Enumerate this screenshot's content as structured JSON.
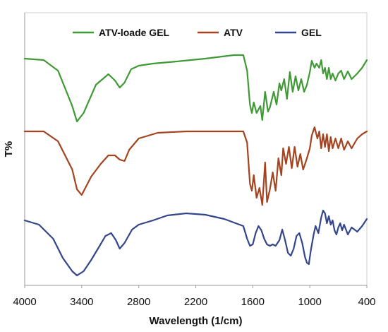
{
  "chart_data": {
    "type": "line",
    "xlabel": "Wavelength (1/cm)",
    "ylabel": "T%",
    "xlim": [
      4000,
      400
    ],
    "x_reversed": true,
    "y_ticks_labeled": false,
    "grid": false,
    "legend_position": "top",
    "x_ticks": [
      4000,
      3400,
      2800,
      2200,
      1600,
      1000,
      400
    ],
    "x_tick_labels": [
      "4000",
      "3400",
      "2800",
      "2200",
      "1600",
      "1000",
      "400"
    ],
    "series": [
      {
        "name": "ATV-loade GEL",
        "color": "#3f9a35",
        "points": [
          [
            4000,
            83
          ],
          [
            3800,
            85
          ],
          [
            3650,
            100
          ],
          [
            3500,
            150
          ],
          [
            3450,
            172
          ],
          [
            3380,
            160
          ],
          [
            3250,
            120
          ],
          [
            3120,
            105
          ],
          [
            3050,
            114
          ],
          [
            3000,
            124
          ],
          [
            2950,
            117
          ],
          [
            2880,
            98
          ],
          [
            2800,
            93
          ],
          [
            2650,
            90
          ],
          [
            2400,
            87
          ],
          [
            2100,
            83
          ],
          [
            1800,
            78
          ],
          [
            1700,
            78
          ],
          [
            1660,
            100
          ],
          [
            1630,
            148
          ],
          [
            1610,
            160
          ],
          [
            1590,
            145
          ],
          [
            1560,
            160
          ],
          [
            1520,
            150
          ],
          [
            1500,
            170
          ],
          [
            1470,
            130
          ],
          [
            1440,
            158
          ],
          [
            1420,
            152
          ],
          [
            1380,
            130
          ],
          [
            1350,
            148
          ],
          [
            1320,
            118
          ],
          [
            1300,
            128
          ],
          [
            1270,
            112
          ],
          [
            1240,
            140
          ],
          [
            1210,
            102
          ],
          [
            1180,
            130
          ],
          [
            1150,
            108
          ],
          [
            1120,
            128
          ],
          [
            1090,
            112
          ],
          [
            1060,
            130
          ],
          [
            1030,
            120
          ],
          [
            1000,
            102
          ],
          [
            980,
            86
          ],
          [
            950,
            96
          ],
          [
            930,
            90
          ],
          [
            900,
            96
          ],
          [
            880,
            85
          ],
          [
            860,
            104
          ],
          [
            840,
            96
          ],
          [
            820,
            112
          ],
          [
            800,
            96
          ],
          [
            780,
            112
          ],
          [
            760,
            104
          ],
          [
            730,
            114
          ],
          [
            700,
            104
          ],
          [
            670,
            100
          ],
          [
            640,
            112
          ],
          [
            600,
            101
          ],
          [
            560,
            112
          ],
          [
            500,
            104
          ],
          [
            450,
            96
          ],
          [
            400,
            85
          ]
        ]
      },
      {
        "name": "ATV",
        "color": "#a4431f",
        "points": [
          [
            4000,
            186
          ],
          [
            3800,
            186
          ],
          [
            3650,
            200
          ],
          [
            3500,
            240
          ],
          [
            3450,
            268
          ],
          [
            3400,
            276
          ],
          [
            3300,
            250
          ],
          [
            3200,
            232
          ],
          [
            3120,
            220
          ],
          [
            3050,
            220
          ],
          [
            3000,
            226
          ],
          [
            2950,
            228
          ],
          [
            2900,
            212
          ],
          [
            2800,
            196
          ],
          [
            2600,
            188
          ],
          [
            2300,
            186
          ],
          [
            2000,
            186
          ],
          [
            1800,
            186
          ],
          [
            1700,
            186
          ],
          [
            1660,
            202
          ],
          [
            1630,
            260
          ],
          [
            1610,
            270
          ],
          [
            1590,
            248
          ],
          [
            1560,
            280
          ],
          [
            1530,
            266
          ],
          [
            1500,
            290
          ],
          [
            1470,
            230
          ],
          [
            1450,
            286
          ],
          [
            1420,
            268
          ],
          [
            1390,
            244
          ],
          [
            1360,
            270
          ],
          [
            1330,
            224
          ],
          [
            1300,
            248
          ],
          [
            1280,
            210
          ],
          [
            1250,
            232
          ],
          [
            1220,
            208
          ],
          [
            1190,
            238
          ],
          [
            1160,
            208
          ],
          [
            1130,
            236
          ],
          [
            1100,
            218
          ],
          [
            1070,
            240
          ],
          [
            1040,
            228
          ],
          [
            1000,
            210
          ],
          [
            980,
            192
          ],
          [
            950,
            180
          ],
          [
            920,
            196
          ],
          [
            900,
            186
          ],
          [
            880,
            210
          ],
          [
            860,
            190
          ],
          [
            840,
            208
          ],
          [
            820,
            190
          ],
          [
            800,
            214
          ],
          [
            780,
            194
          ],
          [
            760,
            210
          ],
          [
            730,
            196
          ],
          [
            700,
            210
          ],
          [
            670,
            196
          ],
          [
            640,
            212
          ],
          [
            600,
            200
          ],
          [
            560,
            210
          ],
          [
            500,
            196
          ],
          [
            450,
            190
          ],
          [
            400,
            186
          ]
        ]
      },
      {
        "name": "GEL",
        "color": "#33468c",
        "points": [
          [
            4000,
            312
          ],
          [
            3850,
            318
          ],
          [
            3700,
            338
          ],
          [
            3600,
            365
          ],
          [
            3500,
            384
          ],
          [
            3450,
            390
          ],
          [
            3380,
            384
          ],
          [
            3300,
            368
          ],
          [
            3220,
            350
          ],
          [
            3150,
            334
          ],
          [
            3090,
            330
          ],
          [
            3040,
            340
          ],
          [
            3000,
            352
          ],
          [
            2950,
            344
          ],
          [
            2870,
            325
          ],
          [
            2800,
            318
          ],
          [
            2650,
            312
          ],
          [
            2500,
            305
          ],
          [
            2300,
            302
          ],
          [
            2100,
            304
          ],
          [
            1900,
            310
          ],
          [
            1800,
            315
          ],
          [
            1700,
            320
          ],
          [
            1660,
            338
          ],
          [
            1630,
            348
          ],
          [
            1600,
            346
          ],
          [
            1570,
            330
          ],
          [
            1540,
            320
          ],
          [
            1510,
            326
          ],
          [
            1480,
            338
          ],
          [
            1450,
            346
          ],
          [
            1420,
            348
          ],
          [
            1390,
            346
          ],
          [
            1360,
            348
          ],
          [
            1320,
            340
          ],
          [
            1290,
            325
          ],
          [
            1260,
            340
          ],
          [
            1230,
            358
          ],
          [
            1200,
            362
          ],
          [
            1170,
            352
          ],
          [
            1140,
            334
          ],
          [
            1110,
            330
          ],
          [
            1080,
            344
          ],
          [
            1050,
            364
          ],
          [
            1030,
            372
          ],
          [
            1010,
            374
          ],
          [
            990,
            355
          ],
          [
            960,
            332
          ],
          [
            940,
            320
          ],
          [
            910,
            330
          ],
          [
            880,
            308
          ],
          [
            860,
            298
          ],
          [
            840,
            302
          ],
          [
            820,
            316
          ],
          [
            800,
            306
          ],
          [
            780,
            318
          ],
          [
            760,
            312
          ],
          [
            740,
            326
          ],
          [
            720,
            332
          ],
          [
            700,
            322
          ],
          [
            680,
            316
          ],
          [
            660,
            326
          ],
          [
            640,
            318
          ],
          [
            600,
            332
          ],
          [
            560,
            322
          ],
          [
            500,
            328
          ],
          [
            450,
            320
          ],
          [
            400,
            310
          ]
        ]
      }
    ]
  }
}
